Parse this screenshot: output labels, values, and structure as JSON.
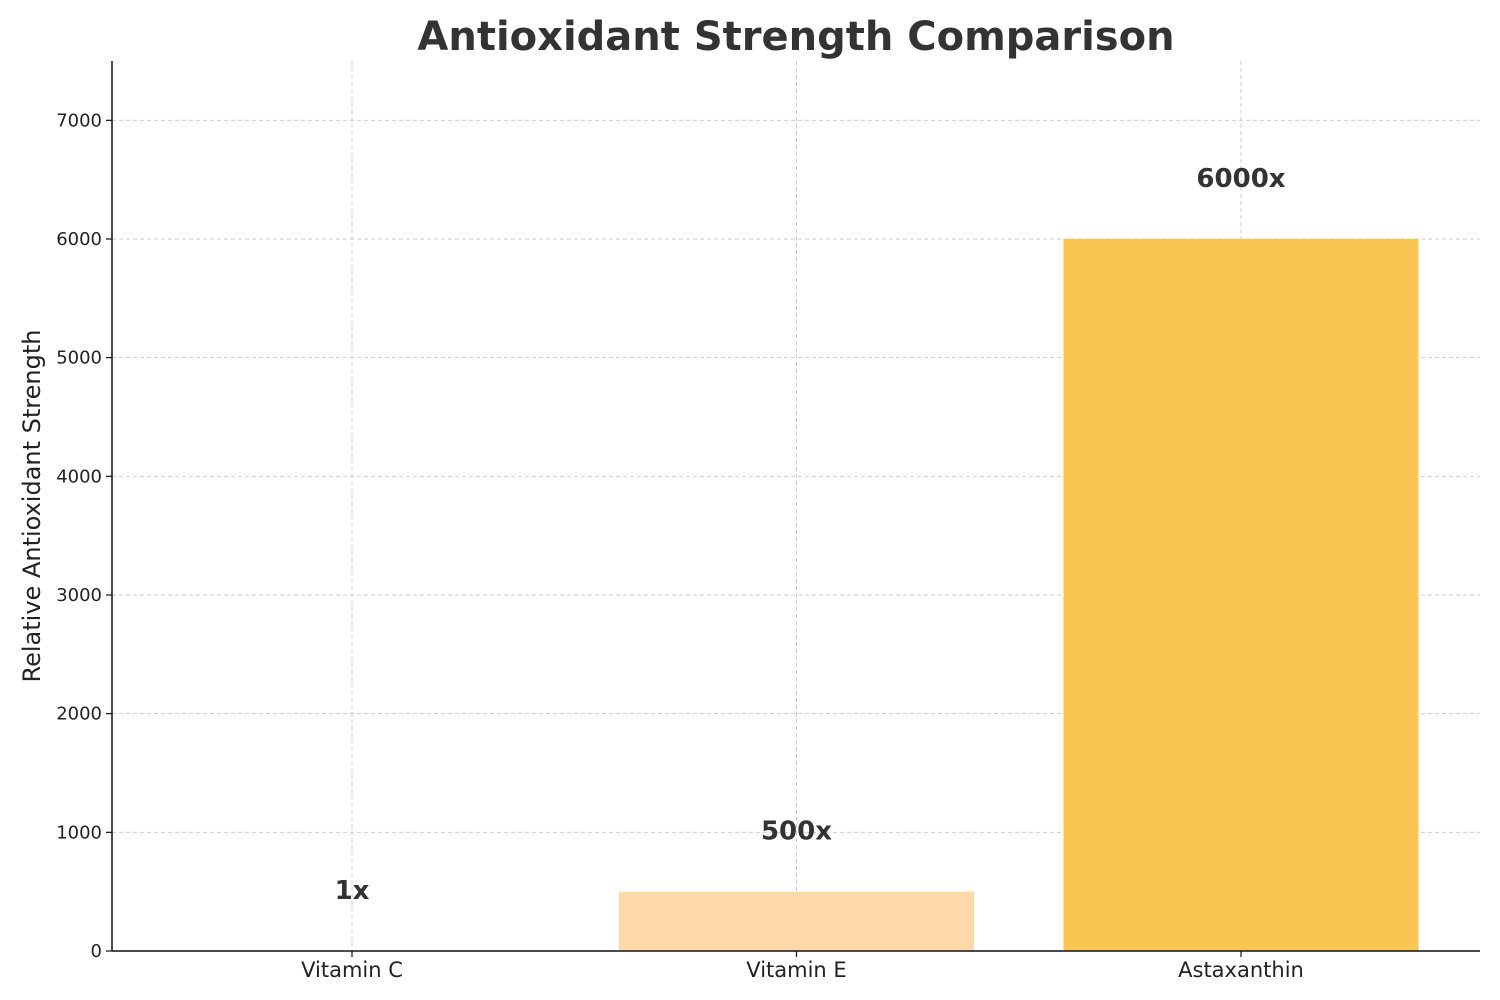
{
  "chart_data": {
    "type": "bar",
    "title": "Antioxidant Strength Comparison",
    "xlabel": "",
    "ylabel": "Relative Antioxidant Strength",
    "categories": [
      "Vitamin C",
      "Vitamin E",
      "Astaxanthin"
    ],
    "values": [
      1,
      500,
      6000
    ],
    "data_labels": [
      "1x",
      "500x",
      "6000x"
    ],
    "colors": [
      "#ffe8c9",
      "#fdd8a9",
      "#f9c652"
    ],
    "ylim": [
      0,
      7500
    ],
    "yticks": [
      0,
      1000,
      2000,
      3000,
      4000,
      5000,
      6000,
      7000
    ],
    "ytick_labels": [
      "0",
      "1000",
      "2000",
      "3000",
      "4000",
      "5000",
      "6000",
      "7000"
    ],
    "grid": true,
    "legend": "none"
  }
}
